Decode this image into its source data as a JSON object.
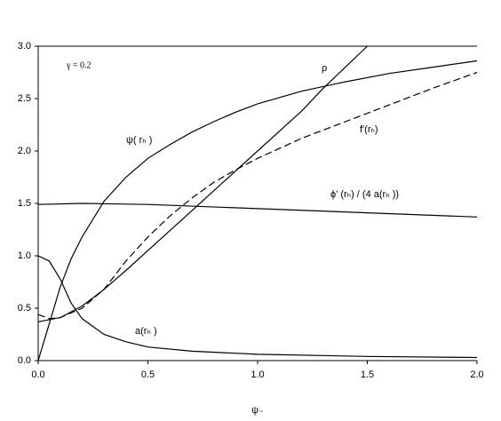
{
  "chart_data": {
    "type": "line",
    "annotation": "γ = 0.2",
    "xlabel": "ψ₋",
    "xlim": [
      0,
      2
    ],
    "ylim": [
      0,
      3
    ],
    "xticks": [
      {
        "value": 0,
        "label": "0.0"
      },
      0.5,
      {
        "value": 1,
        "label": "1.0"
      },
      1.5,
      {
        "value": 2,
        "label": "2.0"
      }
    ],
    "yticks": [
      {
        "value": 0,
        "label": "0.0"
      },
      0.5,
      {
        "value": 1,
        "label": "1.0"
      },
      1.5,
      {
        "value": 2,
        "label": "2.0"
      },
      2.5,
      {
        "value": 3,
        "label": "3.0"
      }
    ],
    "series": [
      {
        "name": "ψ( rₕ )",
        "color": "#000000",
        "dash": false,
        "x": [
          0,
          0.05,
          0.1,
          0.15,
          0.2,
          0.3,
          0.4,
          0.5,
          0.6,
          0.7,
          0.8,
          0.9,
          1.0,
          1.2,
          1.4,
          1.6,
          1.8,
          2.0
        ],
        "values": [
          0,
          0.35,
          0.7,
          0.97,
          1.18,
          1.52,
          1.75,
          1.93,
          2.06,
          2.18,
          2.28,
          2.37,
          2.45,
          2.57,
          2.66,
          2.74,
          2.8,
          2.86
        ]
      },
      {
        "name": "ρ",
        "color": "#000000",
        "dash": false,
        "x": [
          0,
          0.1,
          0.2,
          0.3,
          0.4,
          0.5,
          0.6,
          0.7,
          0.8,
          0.9,
          1.0,
          1.1,
          1.2,
          1.3,
          1.4,
          1.5
        ],
        "values": [
          0.37,
          0.41,
          0.52,
          0.68,
          0.86,
          1.05,
          1.24,
          1.43,
          1.62,
          1.81,
          2.0,
          2.19,
          2.38,
          2.6,
          2.8,
          3.0
        ]
      },
      {
        "name": "f'(rₕ)",
        "color": "#000000",
        "dash": true,
        "x": [
          0,
          0.05,
          0.1,
          0.2,
          0.3,
          0.4,
          0.5,
          0.6,
          0.7,
          0.8,
          0.9,
          1.0,
          1.2,
          1.4,
          1.6,
          1.8,
          2.0
        ],
        "values": [
          0.44,
          0.4,
          0.41,
          0.5,
          0.68,
          0.95,
          1.18,
          1.38,
          1.55,
          1.7,
          1.82,
          1.93,
          2.12,
          2.28,
          2.44,
          2.6,
          2.75
        ]
      },
      {
        "name": "ϕ' (rₕ) / (4 a(rₕ ))",
        "color": "#000000",
        "dash": false,
        "x": [
          0,
          0.2,
          0.5,
          1.0,
          1.5,
          2.0
        ],
        "values": [
          1.49,
          1.5,
          1.49,
          1.45,
          1.41,
          1.37
        ]
      },
      {
        "name": "a(rₕ )",
        "color": "#000000",
        "dash": false,
        "x": [
          0,
          0.05,
          0.1,
          0.15,
          0.2,
          0.3,
          0.4,
          0.5,
          0.7,
          1.0,
          1.5,
          2.0
        ],
        "values": [
          1.0,
          0.95,
          0.78,
          0.55,
          0.4,
          0.25,
          0.18,
          0.13,
          0.09,
          0.06,
          0.04,
          0.03
        ]
      }
    ]
  }
}
